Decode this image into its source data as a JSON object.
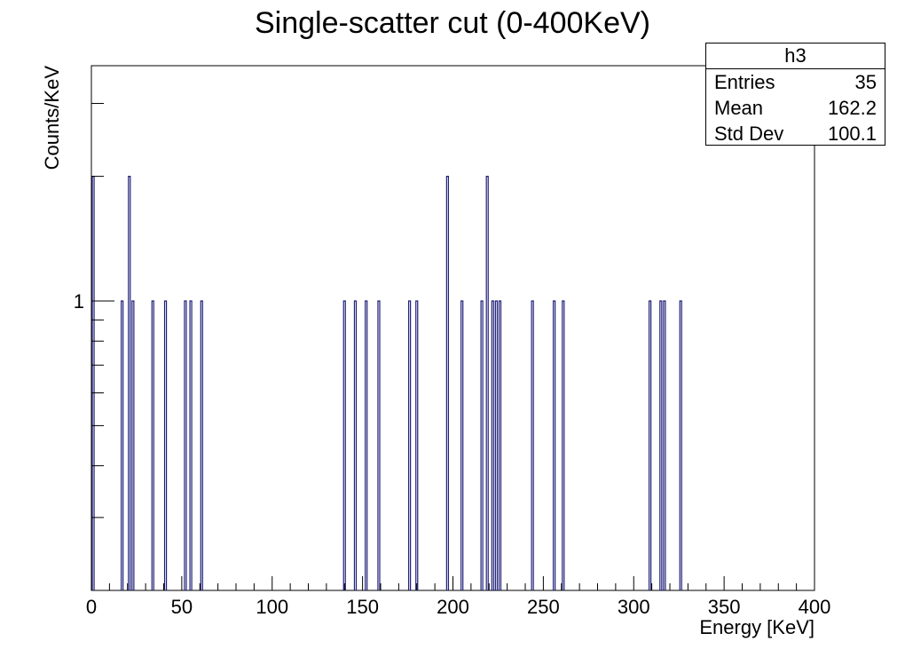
{
  "chart_data": {
    "type": "bar",
    "title": "Single-scatter cut (0-400KeV)",
    "xlabel": "Energy [KeV]",
    "ylabel": "Counts/KeV",
    "xlim": [
      0,
      400
    ],
    "ylim": [
      0.2,
      3.7
    ],
    "y_scale": "log",
    "bin_width": 1,
    "x_ticks": [
      0,
      50,
      100,
      150,
      200,
      250,
      300,
      350,
      400
    ],
    "y_tick_labels": [
      {
        "value": 1,
        "label": "1"
      }
    ],
    "grid": false,
    "bar_color": "#1f1f7a",
    "bins": [
      {
        "x": 1,
        "count": 2
      },
      {
        "x": 17,
        "count": 1
      },
      {
        "x": 21,
        "count": 2
      },
      {
        "x": 23,
        "count": 1
      },
      {
        "x": 34,
        "count": 1
      },
      {
        "x": 41,
        "count": 1
      },
      {
        "x": 52,
        "count": 1
      },
      {
        "x": 55,
        "count": 1
      },
      {
        "x": 61,
        "count": 1
      },
      {
        "x": 140,
        "count": 1
      },
      {
        "x": 146,
        "count": 1
      },
      {
        "x": 152,
        "count": 1
      },
      {
        "x": 159,
        "count": 1
      },
      {
        "x": 176,
        "count": 1
      },
      {
        "x": 180,
        "count": 1
      },
      {
        "x": 197,
        "count": 2
      },
      {
        "x": 205,
        "count": 1
      },
      {
        "x": 216,
        "count": 1
      },
      {
        "x": 219,
        "count": 2
      },
      {
        "x": 222,
        "count": 1
      },
      {
        "x": 224,
        "count": 1
      },
      {
        "x": 226,
        "count": 1
      },
      {
        "x": 244,
        "count": 1
      },
      {
        "x": 256,
        "count": 1
      },
      {
        "x": 261,
        "count": 1
      },
      {
        "x": 309,
        "count": 1
      },
      {
        "x": 315,
        "count": 1
      },
      {
        "x": 317,
        "count": 1
      },
      {
        "x": 326,
        "count": 1
      }
    ]
  },
  "stats": {
    "name": "h3",
    "entries_label": "Entries",
    "entries_value": "35",
    "mean_label": "Mean",
    "mean_value": "162.2",
    "stddev_label": "Std Dev",
    "stddev_value": "100.1"
  }
}
